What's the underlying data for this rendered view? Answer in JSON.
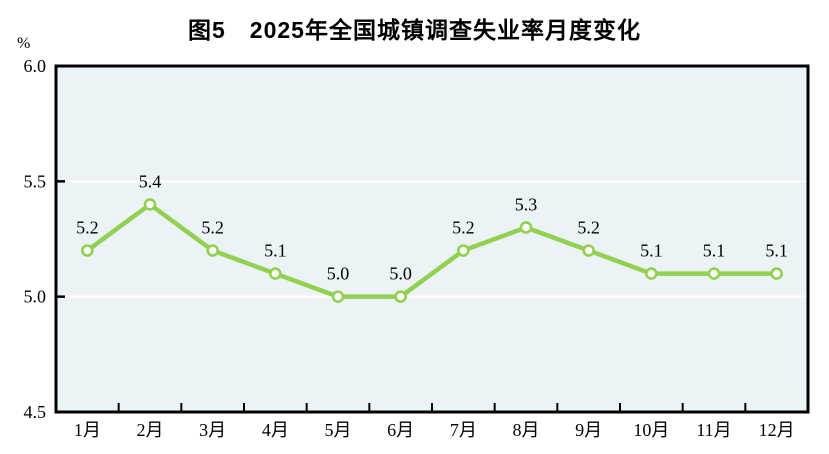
{
  "chart_data": {
    "type": "line",
    "title": "图5　2025年全国城镇调查失业率月度变化",
    "unit_label": "%",
    "xlabel": "",
    "ylabel": "%",
    "categories": [
      "1月",
      "2月",
      "3月",
      "4月",
      "5月",
      "6月",
      "7月",
      "8月",
      "9月",
      "10月",
      "11月",
      "12月"
    ],
    "values": [
      5.2,
      5.4,
      5.2,
      5.1,
      5.0,
      5.0,
      5.2,
      5.3,
      5.2,
      5.1,
      5.1,
      5.1
    ],
    "data_labels": [
      "5.2",
      "5.4",
      "5.2",
      "5.1",
      "5.0",
      "5.0",
      "5.2",
      "5.3",
      "5.2",
      "5.1",
      "5.1",
      "5.1"
    ],
    "ylim": [
      4.5,
      6.0
    ],
    "yticks": [
      4.5,
      5.0,
      5.5,
      6.0
    ],
    "ytick_labels": [
      "4.5",
      "5.0",
      "5.5",
      "6.0"
    ],
    "grid": "horizontal",
    "legend": "none",
    "colors": {
      "line": "#92d050",
      "marker_fill": "#ffffff",
      "plot_bg": "#ecf3f7",
      "gridline": "#ffffff",
      "axis": "#000000",
      "text": "#000000"
    }
  }
}
